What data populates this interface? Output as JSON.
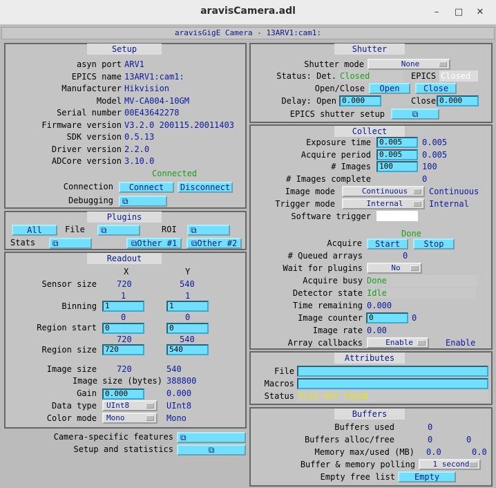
{
  "window": {
    "title": "aravisCamera.adl",
    "minimize": "–",
    "maximize": "□",
    "close": "✕"
  },
  "header": "aravisGigE Camera - 13ARV1:cam1:",
  "setup": {
    "title": "Setup",
    "rows": [
      {
        "label": "asyn port",
        "value": "ARV1"
      },
      {
        "label": "EPICS name",
        "value": "13ARV1:cam1:"
      },
      {
        "label": "Manufacturer",
        "value": "Hikvision"
      },
      {
        "label": "Model",
        "value": "MV-CA004-10GM"
      },
      {
        "label": "Serial number",
        "value": "00E43642278"
      },
      {
        "label": "Firmware version",
        "value": "V3.2.0 200115.20011403"
      },
      {
        "label": "SDK version",
        "value": "0.5.13"
      },
      {
        "label": "Driver version",
        "value": "2.2.0"
      },
      {
        "label": "ADCore version",
        "value": "3.10.0"
      }
    ],
    "connection_status": "Connected",
    "connection_label": "Connection",
    "connect": "Connect",
    "disconnect": "Disconnect",
    "debugging_label": "Debugging",
    "debugging_btn": "⧉"
  },
  "plugins": {
    "title": "Plugins",
    "all": "All",
    "file_label": "File",
    "file_btn": "⧉",
    "roi_label": "ROI",
    "roi_btn": "⧉",
    "stats_label": "Stats",
    "stats_btn": "⧉",
    "other1": "⧉Other #1",
    "other2": "⧉Other #2"
  },
  "readout": {
    "title": "Readout",
    "x_header": "X",
    "y_header": "Y",
    "sensor_size_label": "Sensor size",
    "sensor_x": "720",
    "sensor_y": "540",
    "binning_rb_x": "1",
    "binning_rb_y": "1",
    "binning_label": "Binning",
    "binning_x": "1",
    "binning_y": "1",
    "region_start_rb_x": "0",
    "region_start_rb_y": "0",
    "region_start_label": "Region start",
    "region_start_x": "0",
    "region_start_y": "0",
    "region_size_rb_x": "720",
    "region_size_rb_y": "540",
    "region_size_label": "Region size",
    "region_size_x": "720",
    "region_size_y": "540",
    "image_size_label": "Image size",
    "image_size_x": "720",
    "image_size_y": "540",
    "image_bytes_label": "Image size (bytes)",
    "image_bytes": "388800",
    "gain_label": "Gain",
    "gain_input": "0.000",
    "gain_rb": "0.000",
    "data_type_label": "Data type",
    "data_type_sel": "UInt8",
    "data_type_rb": "UInt8",
    "color_mode_label": "Color mode",
    "color_mode_sel": "Mono",
    "color_mode_rb": "Mono"
  },
  "bottom_left": {
    "camera_features_label": "Camera-specific features",
    "camera_features_btn": "⧉",
    "setup_stats_label": "Setup and statistics",
    "setup_stats_btn": "⧉"
  },
  "shutter": {
    "title": "Shutter",
    "mode_label": "Shutter mode",
    "mode_sel": "None",
    "status_label": "Status: Det.",
    "status_det": "Closed",
    "epics_label": "EPICS",
    "epics_status": "Closed",
    "openclose_label": "Open/Close",
    "open": "Open",
    "close": "Close",
    "delay_label": "Delay: Open",
    "delay_open": "0.000",
    "delay_close_label": "Close",
    "delay_close": "0.000",
    "epics_setup_label": "EPICS shutter setup",
    "epics_setup_btn": "⧉"
  },
  "collect": {
    "title": "Collect",
    "exposure_label": "Exposure time",
    "exposure_input": "0.005",
    "exposure_rb": "0.005",
    "period_label": "Acquire period",
    "period_input": "0.005",
    "period_rb": "0.005",
    "images_label": "# Images",
    "images_input": "100",
    "images_rb": "100",
    "complete_label": "# Images complete",
    "complete_rb": "0",
    "image_mode_label": "Image mode",
    "image_mode_sel": "Continuous",
    "image_mode_rb": "Continuous",
    "trigger_label": "Trigger mode",
    "trigger_sel": "Internal",
    "trigger_rb": "Internal",
    "sw_trigger_label": "Software trigger",
    "acquire_status": "Done",
    "acquire_label": "Acquire",
    "start": "Start",
    "stop": "Stop",
    "queued_label": "# Queued arrays",
    "queued_rb": "0",
    "wait_label": "Wait for plugins",
    "wait_sel": "No",
    "busy_label": "Acquire busy",
    "busy_rb": "Done",
    "det_state_label": "Detector state",
    "det_state_rb": "Idle",
    "time_rem_label": "Time remaining",
    "time_rem_rb": "0.000",
    "counter_label": "Image counter",
    "counter_input": "0",
    "counter_rb": "0",
    "rate_label": "Image rate",
    "rate_rb": "0.00",
    "callbacks_label": "Array callbacks",
    "callbacks_sel": "Enable",
    "callbacks_rb": "Enable"
  },
  "attributes": {
    "title": "Attributes",
    "file_label": "File",
    "file_value": "",
    "macros_label": "Macros",
    "macros_value": "",
    "status_label": "Status",
    "status_value": "File not found"
  },
  "buffers": {
    "title": "Buffers",
    "used_label": "Buffers used",
    "used_rb": "0",
    "alloc_label": "Buffers alloc/free",
    "alloc_rb": "0",
    "free_rb": "0",
    "mem_label": "Memory max/used (MB)",
    "mem_max": "0.0",
    "mem_used": "0.0",
    "polling_label": "Buffer & memory polling",
    "polling_sel": "1 second",
    "empty_label": "Empty free list",
    "empty_btn": "Empty"
  }
}
